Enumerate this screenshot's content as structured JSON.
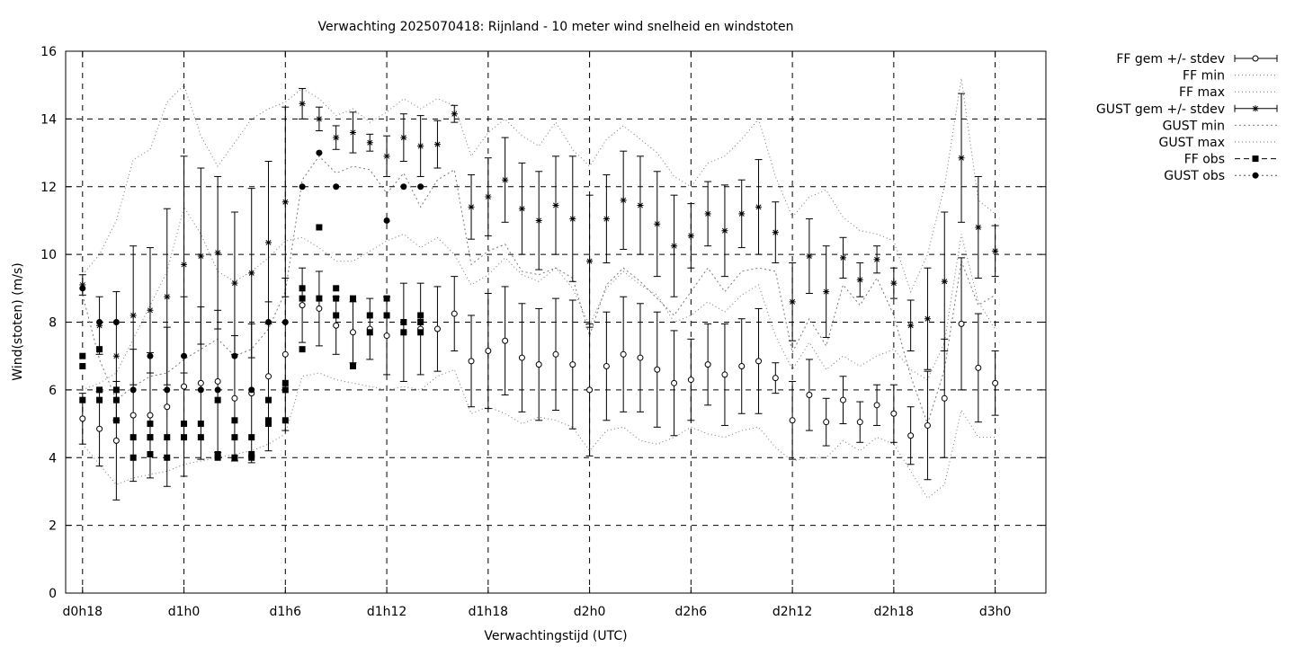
{
  "chart_data": {
    "type": "line",
    "title": "Verwachting 2025070418: Rijnland - 10 meter wind snelheid en windstoten",
    "xlabel": "Verwachtingstijd (UTC)",
    "ylabel": "Wind(stoten) (m/s)",
    "ylim": [
      0,
      16
    ],
    "yticks": [
      0,
      2,
      4,
      6,
      8,
      10,
      12,
      14,
      16
    ],
    "xlim_hours": [
      -1,
      57
    ],
    "xticks": [
      {
        "h": 0,
        "label": "d0h18"
      },
      {
        "h": 6,
        "label": "d1h0"
      },
      {
        "h": 12,
        "label": "d1h6"
      },
      {
        "h": 18,
        "label": "d1h12"
      },
      {
        "h": 24,
        "label": "d1h18"
      },
      {
        "h": 30,
        "label": "d2h0"
      },
      {
        "h": 36,
        "label": "d2h6"
      },
      {
        "h": 42,
        "label": "d2h12"
      },
      {
        "h": 48,
        "label": "d2h18"
      },
      {
        "h": 54,
        "label": "d3h0"
      }
    ],
    "grid": true,
    "legend_position": "outside-top-right",
    "legend": [
      "FF gem +/- stdev",
      "FF min",
      "FF max",
      "GUST gem +/- stdev",
      "GUST min",
      "GUST max",
      "FF obs",
      "GUST obs"
    ],
    "ff_mean": {
      "x": [
        0,
        1,
        2,
        3,
        4,
        5,
        6,
        7,
        8,
        9,
        10,
        11,
        12,
        13,
        14,
        15,
        16,
        17,
        18,
        19,
        20,
        21,
        22,
        23,
        24,
        25,
        26,
        27,
        28,
        29,
        30,
        31,
        32,
        33,
        34,
        35,
        36,
        37,
        38,
        39,
        40,
        41,
        42,
        43,
        44,
        45,
        46,
        47,
        48,
        49,
        50,
        51,
        52,
        53,
        54
      ],
      "mean": [
        5.15,
        4.85,
        4.5,
        5.25,
        5.25,
        5.5,
        6.1,
        6.2,
        6.25,
        5.75,
        5.9,
        6.4,
        7.05,
        8.5,
        8.4,
        7.9,
        7.7,
        7.8,
        7.6,
        7.7,
        7.8,
        7.8,
        8.25,
        6.85,
        7.15,
        7.45,
        6.95,
        6.75,
        7.05,
        6.75,
        6.0,
        6.7,
        7.05,
        6.95,
        6.6,
        6.2,
        6.3,
        6.75,
        6.45,
        6.7,
        6.85,
        6.35,
        5.1,
        5.85,
        5.05,
        5.7,
        5.05,
        5.55,
        5.3,
        4.65,
        4.95,
        5.75,
        7.95,
        6.65,
        6.2
      ],
      "sd": [
        0.75,
        1.1,
        1.75,
        1.95,
        1.85,
        2.35,
        2.65,
        2.25,
        2.1,
        1.85,
        2.05,
        2.2,
        2.25,
        1.1,
        1.1,
        0.85,
        0.9,
        0.9,
        1.15,
        1.45,
        1.35,
        1.25,
        1.1,
        1.35,
        1.7,
        1.6,
        1.6,
        1.65,
        1.65,
        1.9,
        1.95,
        1.6,
        1.7,
        1.6,
        1.7,
        1.55,
        1.2,
        1.2,
        1.5,
        1.4,
        1.55,
        0.45,
        1.15,
        1.05,
        0.7,
        0.7,
        0.6,
        0.6,
        0.85,
        0.85,
        1.6,
        1.75,
        1.95,
        1.6,
        0.95
      ]
    },
    "gust_mean": {
      "x": [
        0,
        1,
        2,
        3,
        4,
        5,
        6,
        7,
        8,
        9,
        10,
        11,
        12,
        13,
        14,
        15,
        16,
        17,
        18,
        19,
        20,
        21,
        22,
        23,
        24,
        25,
        26,
        27,
        28,
        29,
        30,
        31,
        32,
        33,
        34,
        35,
        36,
        37,
        38,
        39,
        40,
        41,
        42,
        43,
        44,
        45,
        46,
        47,
        48,
        49,
        50,
        51,
        52,
        53,
        54
      ],
      "mean": [
        9.1,
        7.9,
        7.0,
        8.2,
        8.35,
        8.75,
        9.7,
        9.95,
        10.05,
        9.15,
        9.45,
        10.35,
        11.55,
        14.45,
        14.0,
        13.45,
        13.6,
        13.3,
        12.9,
        13.45,
        13.2,
        13.25,
        14.15,
        11.4,
        11.7,
        12.2,
        11.35,
        11.0,
        11.45,
        11.05,
        9.8,
        11.05,
        11.6,
        11.45,
        10.9,
        10.25,
        10.55,
        11.2,
        10.7,
        11.2,
        11.4,
        10.65,
        8.6,
        9.95,
        8.9,
        9.9,
        9.25,
        9.85,
        9.15,
        7.9,
        8.1,
        9.2,
        12.85,
        10.8,
        10.1
      ],
      "sd": [
        0.3,
        0.85,
        1.9,
        2.05,
        1.85,
        2.6,
        3.2,
        2.6,
        2.25,
        2.1,
        2.5,
        2.4,
        2.8,
        0.45,
        0.35,
        0.35,
        0.6,
        0.25,
        0.6,
        0.7,
        0.9,
        0.7,
        0.25,
        0.95,
        1.15,
        1.25,
        1.35,
        1.45,
        1.45,
        1.85,
        1.95,
        1.3,
        1.45,
        1.45,
        1.55,
        1.5,
        0.95,
        0.95,
        1.35,
        1.0,
        1.4,
        0.9,
        1.15,
        1.1,
        1.35,
        0.6,
        0.5,
        0.4,
        0.45,
        0.75,
        1.5,
        2.05,
        1.9,
        1.5,
        0.75
      ]
    },
    "ff_min": {
      "x": [
        0,
        1,
        2,
        3,
        4,
        5,
        6,
        7,
        8,
        9,
        10,
        11,
        12,
        13,
        14,
        15,
        16,
        17,
        18,
        19,
        20,
        21,
        22,
        23,
        24,
        25,
        26,
        27,
        28,
        29,
        30,
        31,
        32,
        33,
        34,
        35,
        36,
        37,
        38,
        39,
        40,
        41,
        42,
        43,
        44,
        45,
        46,
        47,
        48,
        49,
        50,
        51,
        52,
        53,
        54
      ],
      "y": [
        4.4,
        3.8,
        3.2,
        3.4,
        3.5,
        3.6,
        3.8,
        3.9,
        4.0,
        4.1,
        4.2,
        4.4,
        4.7,
        6.4,
        6.5,
        6.3,
        6.2,
        6.1,
        6.0,
        6.1,
        6.0,
        6.4,
        6.6,
        5.3,
        5.5,
        5.3,
        5.0,
        5.2,
        5.1,
        4.9,
        4.2,
        4.8,
        4.9,
        4.5,
        4.4,
        4.6,
        4.9,
        4.7,
        4.6,
        4.8,
        4.9,
        4.3,
        3.9,
        4.0,
        4.0,
        4.5,
        4.2,
        4.6,
        4.4,
        3.6,
        2.8,
        3.2,
        5.4,
        4.6,
        4.6
      ]
    },
    "ff_max": {
      "x": [
        0,
        1,
        2,
        3,
        4,
        5,
        6,
        7,
        8,
        9,
        10,
        11,
        12,
        13,
        14,
        15,
        16,
        17,
        18,
        19,
        20,
        21,
        22,
        23,
        24,
        25,
        26,
        27,
        28,
        29,
        30,
        31,
        32,
        33,
        34,
        35,
        36,
        37,
        38,
        39,
        40,
        41,
        42,
        43,
        44,
        45,
        46,
        47,
        48,
        49,
        50,
        51,
        52,
        53,
        54
      ],
      "y": [
        6.0,
        6.2,
        6.5,
        7.5,
        8.5,
        9.5,
        11.4,
        10.6,
        9.5,
        9.2,
        9.5,
        9.9,
        10.4,
        10.5,
        10.2,
        9.8,
        9.8,
        10.1,
        10.4,
        10.6,
        10.2,
        10.5,
        10.0,
        9.1,
        9.4,
        9.9,
        9.4,
        9.2,
        9.6,
        9.0,
        7.9,
        9.0,
        9.5,
        9.1,
        8.8,
        8.0,
        8.2,
        8.6,
        8.3,
        8.8,
        9.1,
        7.6,
        6.6,
        7.4,
        6.6,
        7.0,
        6.7,
        7.0,
        7.2,
        6.6,
        6.3,
        7.4,
        10.6,
        8.6,
        7.8
      ]
    },
    "gust_min": {
      "x": [
        0,
        1,
        2,
        3,
        4,
        5,
        6,
        7,
        8,
        9,
        10,
        11,
        12,
        13,
        14,
        15,
        16,
        17,
        18,
        19,
        20,
        21,
        22,
        23,
        24,
        25,
        26,
        27,
        28,
        29,
        30,
        31,
        32,
        33,
        34,
        35,
        36,
        37,
        38,
        39,
        40,
        41,
        42,
        43,
        44,
        45,
        46,
        47,
        48,
        49,
        50,
        51,
        52,
        53,
        54
      ],
      "y": [
        8.8,
        6.9,
        5.7,
        6.1,
        6.4,
        6.5,
        6.9,
        7.2,
        7.5,
        7.0,
        7.2,
        7.8,
        8.9,
        12.2,
        12.9,
        12.4,
        12.6,
        12.5,
        11.8,
        12.4,
        11.4,
        12.2,
        12.5,
        9.7,
        10.1,
        10.3,
        9.5,
        9.4,
        9.6,
        9.3,
        7.6,
        9.1,
        9.6,
        9.2,
        8.7,
        8.2,
        8.9,
        9.6,
        8.9,
        9.5,
        9.6,
        9.5,
        7.1,
        8.1,
        7.3,
        9.1,
        8.5,
        9.3,
        8.2,
        6.4,
        5.0,
        6.6,
        9.8,
        8.5,
        8.8
      ]
    },
    "gust_max": {
      "x": [
        0,
        1,
        2,
        3,
        4,
        5,
        6,
        7,
        8,
        9,
        10,
        11,
        12,
        13,
        14,
        15,
        16,
        17,
        18,
        19,
        20,
        21,
        22,
        23,
        24,
        25,
        26,
        27,
        28,
        29,
        30,
        31,
        32,
        33,
        34,
        35,
        36,
        37,
        38,
        39,
        40,
        41,
        42,
        43,
        44,
        45,
        46,
        47,
        48,
        49,
        50,
        51,
        52,
        53,
        54
      ],
      "y": [
        9.4,
        10.0,
        11.0,
        12.8,
        13.1,
        14.5,
        15.0,
        13.5,
        12.6,
        13.3,
        14.0,
        14.3,
        14.5,
        14.9,
        14.6,
        14.1,
        14.3,
        13.9,
        14.2,
        14.6,
        14.3,
        14.6,
        14.4,
        12.9,
        13.6,
        14.0,
        13.5,
        13.2,
        13.9,
        13.1,
        12.6,
        13.4,
        13.8,
        13.4,
        13.0,
        12.3,
        12.0,
        12.7,
        12.9,
        13.4,
        14.0,
        12.3,
        11.1,
        11.7,
        11.9,
        11.1,
        10.7,
        10.6,
        10.4,
        8.9,
        10.0,
        12.0,
        15.2,
        11.6,
        11.2
      ]
    },
    "ff_obs": {
      "x": [
        0,
        0,
        0,
        1,
        1,
        1,
        2,
        2,
        2,
        3,
        3,
        4,
        4,
        4,
        4,
        5,
        5,
        6,
        6,
        7,
        7,
        8,
        8,
        8,
        9,
        9,
        9,
        10,
        10,
        10,
        11,
        11,
        11,
        12,
        12,
        12,
        13,
        13,
        13,
        14,
        14,
        15,
        15,
        15,
        16,
        16,
        17,
        17,
        18,
        18,
        19,
        19,
        20,
        20,
        20
      ],
      "y": [
        7.0,
        6.7,
        5.7,
        7.2,
        6.0,
        5.7,
        6.0,
        5.7,
        5.1,
        4.6,
        4.0,
        5.0,
        4.6,
        4.1,
        4.6,
        4.6,
        4.0,
        5.0,
        4.6,
        5.0,
        4.6,
        5.7,
        4.1,
        4.0,
        5.1,
        4.6,
        4.0,
        4.6,
        4.1,
        4.0,
        5.7,
        5.1,
        5.0,
        6.2,
        6.0,
        5.1,
        9.0,
        8.7,
        7.2,
        10.8,
        8.7,
        9.0,
        8.7,
        8.2,
        8.7,
        6.7,
        8.2,
        7.7,
        8.7,
        8.2,
        8.0,
        7.7,
        8.2,
        8.0,
        7.7
      ]
    },
    "gust_obs": {
      "x": [
        0,
        1,
        2,
        3,
        4,
        5,
        6,
        7,
        8,
        9,
        10,
        11,
        12,
        13,
        14,
        15,
        18,
        19,
        20
      ],
      "y": [
        9.0,
        8.0,
        8.0,
        6.0,
        7.0,
        6.0,
        7.0,
        6.0,
        6.0,
        7.0,
        6.0,
        8.0,
        8.0,
        12.0,
        13.0,
        12.0,
        11.0,
        12.0,
        12.0
      ]
    }
  }
}
